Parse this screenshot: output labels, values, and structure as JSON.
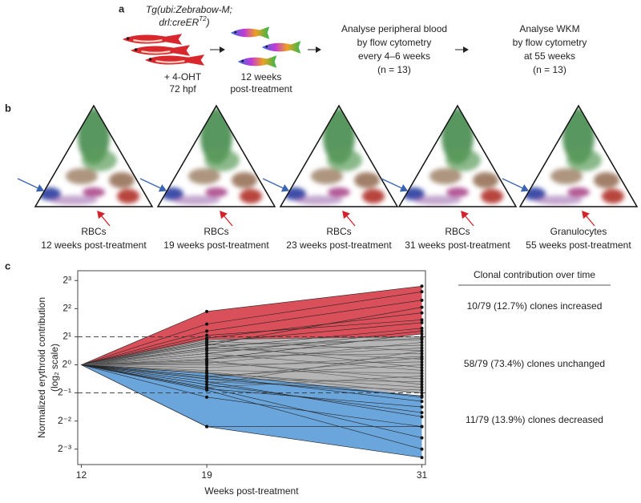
{
  "panel_a": {
    "label": "a",
    "genotype_line1": "Tg(ubi:Zebrabow-M;",
    "genotype_line2": "drl:creER",
    "genotype_sup": "T2",
    "genotype_end": ")",
    "treatment_line1": "+ 4-OHT",
    "treatment_line2": "72 hpf",
    "time_line1": "12 weeks",
    "time_line2": "post-treatment",
    "step3": [
      "Analyse peripheral blood",
      "by flow cytometry",
      "every 4–6 weeks",
      "(n = 13)"
    ],
    "step4": [
      "Analyse WKM",
      "by flow cytometry",
      "at 55 weeks",
      "(n = 13)"
    ]
  },
  "panel_b": {
    "label": "b",
    "plots": [
      {
        "label": "RBCs",
        "time": "12 weeks post-treatment"
      },
      {
        "label": "RBCs",
        "time": "19 weeks post-treatment"
      },
      {
        "label": "RBCs",
        "time": "23 weeks post-treatment"
      },
      {
        "label": "RBCs",
        "time": "31 weeks post-treatment"
      },
      {
        "label": "Granulocytes",
        "time": "55 weeks post-treatment"
      }
    ]
  },
  "panel_c": {
    "label": "c",
    "summary_title": "Clonal contribution over time",
    "summary": [
      "10/79 (12.7%) clones increased",
      "58/79 (73.4%) clones unchanged",
      "11/79 (13.9%) clones decreased"
    ]
  },
  "chart_data": {
    "type": "line",
    "ylabel": "Normalized erythroid contribution",
    "ylabel2": "(log₂ scale)",
    "xlabel": "Weeks post-treatment",
    "x": [
      12,
      19,
      31
    ],
    "xlim": [
      11.8,
      31.2
    ],
    "xticks": [
      12,
      19,
      31
    ],
    "ylim": [
      -3.55,
      3.35
    ],
    "yticks": [
      {
        "value": 3,
        "label": "2³"
      },
      {
        "value": 2,
        "label": "2²"
      },
      {
        "value": 1,
        "label": "2¹"
      },
      {
        "value": 0,
        "label": "2⁰"
      },
      {
        "value": -1,
        "label": "2⁻¹"
      },
      {
        "value": -2,
        "label": "2⁻²"
      },
      {
        "value": -3,
        "label": "2⁻³"
      }
    ],
    "threshold_lines": [
      1,
      -1
    ],
    "groups": [
      {
        "color": "#d9505a",
        "clones": [
          [
            0,
            1.9,
            2.8
          ],
          [
            0,
            1.45,
            2.6
          ],
          [
            0,
            1.2,
            2.3
          ],
          [
            0,
            0.95,
            1.85
          ],
          [
            0,
            0.8,
            1.5
          ],
          [
            0,
            0.6,
            1.3
          ],
          [
            0,
            1.05,
            1.6
          ],
          [
            0,
            0.4,
            1.2
          ],
          [
            0,
            0.2,
            1.1
          ],
          [
            0,
            0.7,
            2.05
          ]
        ]
      },
      {
        "color": "#b5b5b5",
        "clones": [
          [
            0,
            0.9,
            1.0
          ],
          [
            0,
            0.85,
            0.5
          ],
          [
            0,
            0.7,
            0.9
          ],
          [
            0,
            0.6,
            0.2
          ],
          [
            0,
            0.5,
            0.7
          ],
          [
            0,
            0.4,
            -0.2
          ],
          [
            0,
            0.3,
            0.4
          ],
          [
            0,
            0.2,
            0.6
          ],
          [
            0,
            0.1,
            -0.5
          ],
          [
            0,
            0,
            0.1
          ],
          [
            0,
            -0.1,
            0.3
          ],
          [
            0,
            -0.2,
            -0.3
          ],
          [
            0,
            -0.3,
            -0.8
          ],
          [
            0,
            -0.4,
            0
          ],
          [
            0,
            -0.5,
            -0.6
          ],
          [
            0,
            -0.6,
            -0.9
          ],
          [
            0,
            -0.7,
            0.5
          ],
          [
            0,
            -0.8,
            -0.4
          ],
          [
            0,
            0.75,
            -0.1
          ],
          [
            0,
            0.05,
            0.8
          ],
          [
            0,
            -0.25,
            -1.0
          ],
          [
            0,
            0.55,
            0.95
          ],
          [
            0,
            -0.45,
            0.25
          ],
          [
            0,
            0.15,
            -0.7
          ]
        ]
      },
      {
        "color": "#6aa5dc",
        "clones": [
          [
            0,
            -2.2,
            -3.3
          ],
          [
            0,
            -1.15,
            -2.2
          ],
          [
            0,
            -0.85,
            -1.5
          ],
          [
            0,
            -2.2,
            -2.2
          ],
          [
            0,
            -0.9,
            -3.0
          ],
          [
            0,
            -0.8,
            -2.6
          ],
          [
            0,
            -0.6,
            -1.85
          ],
          [
            0,
            -0.4,
            -1.3
          ],
          [
            0,
            -0.7,
            -1.7
          ],
          [
            0,
            -0.3,
            -1.15
          ],
          [
            0,
            -0.5,
            -1.1
          ]
        ]
      }
    ]
  }
}
